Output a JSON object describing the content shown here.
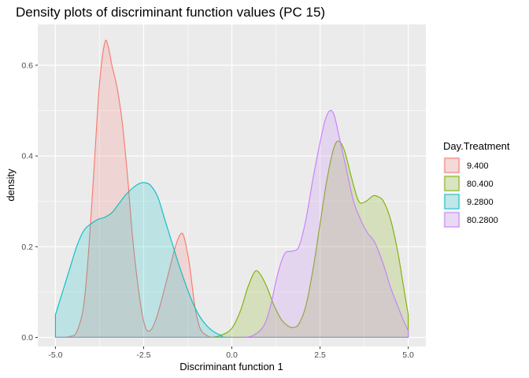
{
  "chart_data": {
    "type": "area",
    "title": "Density plots of discriminant function values (PC 15)",
    "xlabel": "Discriminant function 1",
    "ylabel": "density",
    "xlim": [
      -5.5,
      5.5
    ],
    "ylim": [
      -0.02,
      0.69
    ],
    "x_ticks": [
      "-5.0",
      "-2.5",
      "0.0",
      "2.5",
      "5.0"
    ],
    "y_ticks": [
      "0.0",
      "0.2",
      "0.4",
      "0.6"
    ],
    "grid": true,
    "legend_position": "right",
    "legend_title": "Day.Treatment",
    "series": [
      {
        "name": "9.400",
        "color": "#F8766D",
        "fill_opacity": 0.2,
        "points": [
          [
            -5.0,
            0.0
          ],
          [
            -4.8,
            0.0
          ],
          [
            -4.6,
            0.002
          ],
          [
            -4.4,
            0.012
          ],
          [
            -4.2,
            0.07
          ],
          [
            -4.05,
            0.2
          ],
          [
            -3.9,
            0.38
          ],
          [
            -3.75,
            0.56
          ],
          [
            -3.6,
            0.65
          ],
          [
            -3.5,
            0.64
          ],
          [
            -3.4,
            0.6
          ],
          [
            -3.25,
            0.55
          ],
          [
            -3.1,
            0.47
          ],
          [
            -2.95,
            0.35
          ],
          [
            -2.8,
            0.21
          ],
          [
            -2.6,
            0.08
          ],
          [
            -2.45,
            0.022
          ],
          [
            -2.3,
            0.016
          ],
          [
            -2.15,
            0.04
          ],
          [
            -2.0,
            0.08
          ],
          [
            -1.8,
            0.14
          ],
          [
            -1.6,
            0.2
          ],
          [
            -1.45,
            0.228
          ],
          [
            -1.35,
            0.22
          ],
          [
            -1.2,
            0.16
          ],
          [
            -1.05,
            0.07
          ],
          [
            -0.9,
            0.02
          ],
          [
            -0.7,
            0.004
          ],
          [
            -0.5,
            0.0
          ],
          [
            0.0,
            0.0
          ],
          [
            2.5,
            0.0
          ],
          [
            5.0,
            0.0
          ]
        ]
      },
      {
        "name": "80.400",
        "color": "#7CAE00",
        "fill_opacity": 0.2,
        "points": [
          [
            -5.0,
            0.0
          ],
          [
            -1.0,
            0.0
          ],
          [
            -0.6,
            0.0
          ],
          [
            -0.3,
            0.005
          ],
          [
            0.0,
            0.02
          ],
          [
            0.25,
            0.06
          ],
          [
            0.45,
            0.11
          ],
          [
            0.65,
            0.145
          ],
          [
            0.8,
            0.14
          ],
          [
            1.0,
            0.11
          ],
          [
            1.2,
            0.07
          ],
          [
            1.4,
            0.04
          ],
          [
            1.6,
            0.025
          ],
          [
            1.75,
            0.022
          ],
          [
            1.9,
            0.03
          ],
          [
            2.1,
            0.07
          ],
          [
            2.3,
            0.15
          ],
          [
            2.5,
            0.25
          ],
          [
            2.7,
            0.35
          ],
          [
            2.9,
            0.42
          ],
          [
            3.05,
            0.432
          ],
          [
            3.2,
            0.41
          ],
          [
            3.4,
            0.35
          ],
          [
            3.6,
            0.3
          ],
          [
            3.8,
            0.3
          ],
          [
            4.0,
            0.312
          ],
          [
            4.15,
            0.31
          ],
          [
            4.3,
            0.3
          ],
          [
            4.5,
            0.26
          ],
          [
            4.7,
            0.19
          ],
          [
            4.85,
            0.12
          ],
          [
            5.0,
            0.05
          ]
        ]
      },
      {
        "name": "9.2800",
        "color": "#00BFC4",
        "fill_opacity": 0.2,
        "points": [
          [
            -5.0,
            0.05
          ],
          [
            -4.8,
            0.1
          ],
          [
            -4.6,
            0.15
          ],
          [
            -4.4,
            0.2
          ],
          [
            -4.2,
            0.235
          ],
          [
            -4.0,
            0.25
          ],
          [
            -3.8,
            0.26
          ],
          [
            -3.6,
            0.265
          ],
          [
            -3.4,
            0.275
          ],
          [
            -3.2,
            0.295
          ],
          [
            -3.0,
            0.315
          ],
          [
            -2.8,
            0.33
          ],
          [
            -2.6,
            0.34
          ],
          [
            -2.45,
            0.341
          ],
          [
            -2.3,
            0.335
          ],
          [
            -2.1,
            0.31
          ],
          [
            -1.9,
            0.26
          ],
          [
            -1.7,
            0.21
          ],
          [
            -1.5,
            0.16
          ],
          [
            -1.3,
            0.115
          ],
          [
            -1.1,
            0.075
          ],
          [
            -0.9,
            0.045
          ],
          [
            -0.7,
            0.025
          ],
          [
            -0.5,
            0.012
          ],
          [
            -0.3,
            0.005
          ],
          [
            0.0,
            0.0
          ],
          [
            2.5,
            0.0
          ],
          [
            5.0,
            0.0
          ]
        ]
      },
      {
        "name": "80.2800",
        "color": "#C77CFF",
        "fill_opacity": 0.2,
        "points": [
          [
            -5.0,
            0.0
          ],
          [
            0.0,
            0.0
          ],
          [
            0.3,
            0.0
          ],
          [
            0.6,
            0.004
          ],
          [
            0.9,
            0.025
          ],
          [
            1.1,
            0.07
          ],
          [
            1.3,
            0.14
          ],
          [
            1.5,
            0.185
          ],
          [
            1.7,
            0.19
          ],
          [
            1.9,
            0.2
          ],
          [
            2.1,
            0.26
          ],
          [
            2.3,
            0.35
          ],
          [
            2.5,
            0.43
          ],
          [
            2.65,
            0.48
          ],
          [
            2.78,
            0.5
          ],
          [
            2.9,
            0.49
          ],
          [
            3.05,
            0.44
          ],
          [
            3.25,
            0.37
          ],
          [
            3.45,
            0.3
          ],
          [
            3.65,
            0.26
          ],
          [
            3.85,
            0.23
          ],
          [
            4.05,
            0.21
          ],
          [
            4.3,
            0.16
          ],
          [
            4.5,
            0.11
          ],
          [
            4.7,
            0.07
          ],
          [
            4.85,
            0.04
          ],
          [
            5.0,
            0.015
          ]
        ]
      }
    ]
  }
}
